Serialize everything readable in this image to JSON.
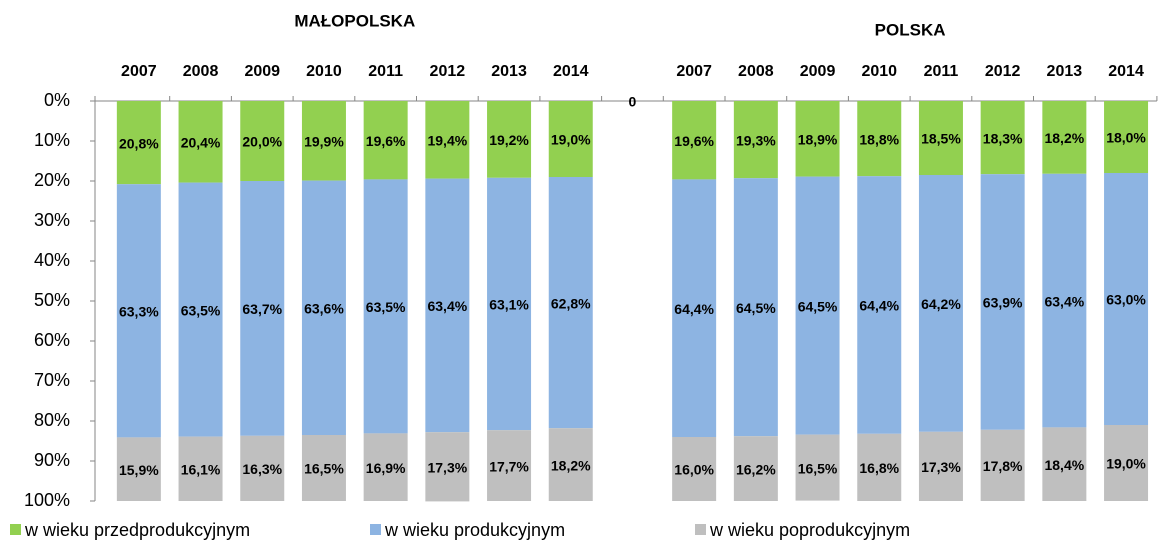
{
  "chart_data": {
    "type": "stacked_bar",
    "groups": [
      "MAŁOPOLSKA",
      "POLSKA"
    ],
    "categories": [
      "2007",
      "2008",
      "2009",
      "2010",
      "2011",
      "2012",
      "2013",
      "2014",
      null,
      "2007",
      "2008",
      "2009",
      "2010",
      "2011",
      "2012",
      "2013",
      "2014"
    ],
    "ylim": [
      0,
      100
    ],
    "y_inverted": true,
    "yticks": [
      {
        "value": 0,
        "label": "0%"
      },
      {
        "value": 10,
        "label": "10%"
      },
      {
        "value": 20,
        "label": "20%"
      },
      {
        "value": 30,
        "label": "30%"
      },
      {
        "value": 40,
        "label": "40%"
      },
      {
        "value": 50,
        "label": "50%"
      },
      {
        "value": 60,
        "label": "60%"
      },
      {
        "value": 70,
        "label": "70%"
      },
      {
        "value": 80,
        "label": "80%"
      },
      {
        "value": 90,
        "label": "90%"
      },
      {
        "value": 100,
        "label": "100%"
      }
    ],
    "legend": "bottom",
    "series": [
      {
        "name": "w wieku przedprodukcyjnym",
        "color": "#92d050",
        "values": [
          20.8,
          20.4,
          20.0,
          19.9,
          19.6,
          19.4,
          19.2,
          19.0,
          0,
          19.6,
          19.3,
          18.9,
          18.8,
          18.5,
          18.3,
          18.2,
          18.0
        ],
        "value_labels": [
          "20,8%",
          "20,4%",
          "20,0%",
          "19,9%",
          "19,6%",
          "19,4%",
          "19,2%",
          "19,0%",
          "0",
          "19,6%",
          "19,3%",
          "18,9%",
          "18,8%",
          "18,5%",
          "18,3%",
          "18,2%",
          "18,0%"
        ]
      },
      {
        "name": "w wieku produkcyjnym",
        "color": "#8db4e2",
        "values": [
          63.3,
          63.5,
          63.7,
          63.6,
          63.5,
          63.4,
          63.1,
          62.8,
          null,
          64.4,
          64.5,
          64.5,
          64.4,
          64.2,
          63.9,
          63.4,
          63.0
        ],
        "value_labels": [
          "63,3%",
          "63,5%",
          "63,7%",
          "63,6%",
          "63,5%",
          "63,4%",
          "63,1%",
          "62,8%",
          null,
          "64,4%",
          "64,5%",
          "64,5%",
          "64,4%",
          "64,2%",
          "63,9%",
          "63,4%",
          "63,0%"
        ]
      },
      {
        "name": "w wieku poprodukcyjnym",
        "color": "#bfbfbf",
        "values": [
          15.9,
          16.1,
          16.3,
          16.5,
          16.9,
          17.3,
          17.7,
          18.2,
          null,
          16.0,
          16.2,
          16.5,
          16.8,
          17.3,
          17.8,
          18.4,
          19.0
        ],
        "value_labels": [
          "15,9%",
          "16,1%",
          "16,3%",
          "16,5%",
          "16,9%",
          "17,3%",
          "17,7%",
          "18,2%",
          null,
          "16,0%",
          "16,2%",
          "16,5%",
          "16,8%",
          "17,3%",
          "17,8%",
          "18,4%",
          "19,0%"
        ]
      }
    ]
  }
}
